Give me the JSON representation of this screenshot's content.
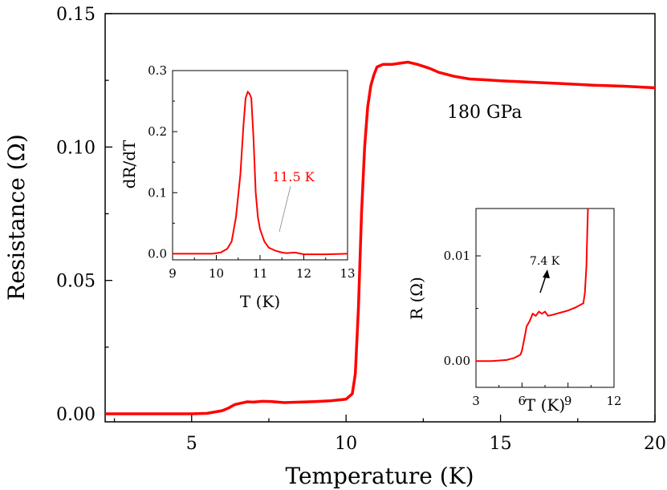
{
  "chart_data": [
    {
      "type": "line",
      "xlabel": "Temperature (K)",
      "ylabel": "Resistance (Ω)",
      "xlim": [
        2.2,
        20
      ],
      "ylim": [
        -0.003,
        0.15
      ],
      "xticks": [
        5,
        10,
        15,
        20
      ],
      "xtick_labels": [
        "5",
        "10",
        "15",
        "20"
      ],
      "yticks": [
        0.0,
        0.05,
        0.1,
        0.15
      ],
      "ytick_labels": [
        "0.00",
        "0.05",
        "0.10",
        "0.15"
      ],
      "annotation": "180 GPa",
      "color": "#ff0000",
      "series": [
        {
          "x": [
            2.2,
            3.0,
            4.0,
            5.0,
            5.5,
            5.8,
            6.0,
            6.2,
            6.4,
            6.6,
            6.8,
            7.0,
            7.3,
            7.6,
            8.0,
            8.5,
            9.0,
            9.5,
            10.0,
            10.2,
            10.3,
            10.4,
            10.5,
            10.6,
            10.7,
            10.8,
            10.9,
            11.0,
            11.2,
            11.5,
            11.8,
            12.0,
            12.3,
            12.7,
            13.0,
            13.5,
            14.0,
            14.5,
            15.0,
            16.0,
            17.0,
            18.0,
            19.0,
            20.0
          ],
          "y": [
            0.0,
            0.0,
            0.0,
            0.0,
            0.0002,
            0.0008,
            0.0012,
            0.0022,
            0.0035,
            0.004,
            0.0045,
            0.0044,
            0.0047,
            0.0046,
            0.0042,
            0.0044,
            0.0046,
            0.0049,
            0.0055,
            0.0075,
            0.015,
            0.04,
            0.075,
            0.1,
            0.115,
            0.123,
            0.127,
            0.13,
            0.131,
            0.131,
            0.1315,
            0.1318,
            0.131,
            0.1295,
            0.128,
            0.1265,
            0.1255,
            0.1252,
            0.1248,
            0.1243,
            0.1238,
            0.1232,
            0.1228,
            0.1222
          ]
        }
      ]
    },
    {
      "type": "line",
      "xlabel": "T (K)",
      "ylabel": "dR/dT",
      "xlim": [
        9,
        13
      ],
      "ylim": [
        -0.01,
        0.3
      ],
      "xticks": [
        9,
        10,
        11,
        12,
        13
      ],
      "xtick_labels": [
        "9",
        "10",
        "11",
        "12",
        "13"
      ],
      "yticks": [
        0.0,
        0.1,
        0.2,
        0.3
      ],
      "ytick_labels": [
        "0.0",
        "0.1",
        "0.2",
        "0.3"
      ],
      "annotation": "11.5 K",
      "color": "#ff0000",
      "series": [
        {
          "x": [
            9.0,
            9.5,
            9.9,
            10.1,
            10.25,
            10.35,
            10.45,
            10.55,
            10.62,
            10.67,
            10.72,
            10.76,
            10.8,
            10.85,
            10.9,
            10.95,
            11.0,
            11.1,
            11.2,
            11.35,
            11.5,
            11.6,
            11.7,
            11.8,
            11.9,
            12.0,
            12.5,
            13.0
          ],
          "y": [
            0.0,
            0.0,
            0.0,
            0.002,
            0.008,
            0.02,
            0.06,
            0.13,
            0.21,
            0.255,
            0.265,
            0.262,
            0.255,
            0.19,
            0.1,
            0.06,
            0.04,
            0.02,
            0.01,
            0.005,
            0.002,
            0.001,
            0.0015,
            0.002,
            0.0005,
            -0.001,
            -0.001,
            0.0
          ]
        }
      ]
    },
    {
      "type": "line",
      "xlabel": "T (K)",
      "ylabel": "R (Ω)",
      "xlim": [
        3,
        12
      ],
      "ylim": [
        -0.0025,
        0.0145
      ],
      "xticks": [
        3,
        6,
        9,
        12
      ],
      "xtick_labels": [
        "3",
        "6",
        "9",
        "12"
      ],
      "yticks": [
        0.0,
        0.01
      ],
      "ytick_labels": [
        "0.00",
        "0.01"
      ],
      "annotation": "7.4 K",
      "color": "#ff0000",
      "series": [
        {
          "x": [
            3.0,
            4.0,
            5.0,
            5.5,
            5.9,
            6.0,
            6.2,
            6.3,
            6.5,
            6.7,
            6.9,
            7.1,
            7.3,
            7.5,
            7.7,
            8.0,
            8.5,
            9.0,
            9.5,
            10.0,
            10.1,
            10.2,
            10.25,
            10.3
          ],
          "y": [
            0.0,
            0.0,
            0.0001,
            0.0003,
            0.0006,
            0.001,
            0.0025,
            0.0033,
            0.0038,
            0.0045,
            0.0043,
            0.0047,
            0.0045,
            0.0047,
            0.0043,
            0.0044,
            0.0046,
            0.0048,
            0.0051,
            0.0055,
            0.0065,
            0.009,
            0.012,
            0.0145
          ]
        }
      ]
    }
  ]
}
